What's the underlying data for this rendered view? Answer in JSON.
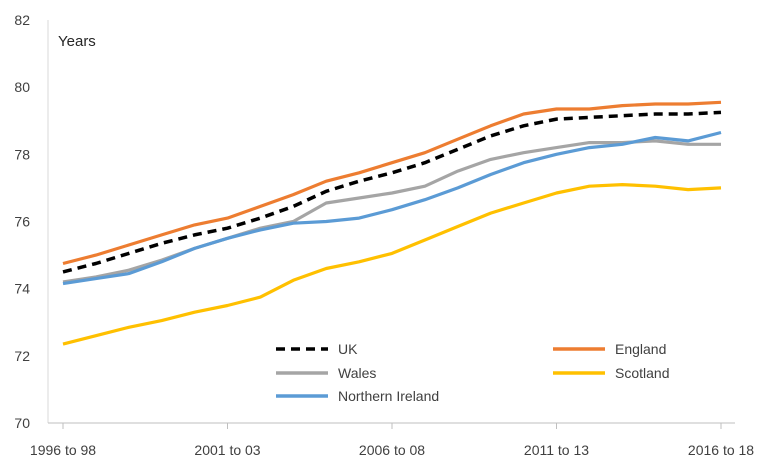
{
  "chart_data": {
    "type": "line",
    "title": "",
    "xlabel": "",
    "ylabel": "Years",
    "ylim": [
      70,
      82
    ],
    "yticks": [
      70,
      72,
      74,
      76,
      78,
      80,
      82
    ],
    "grid": false,
    "legend_position": "bottom-center",
    "x_tick_labels": [
      "1996 to 98",
      "2001 to 03",
      "2006 to 08",
      "2011 to 13",
      "2016 to 18"
    ],
    "x_tick_indices": [
      0,
      5,
      10,
      15,
      20
    ],
    "categories": [
      "1996 to 98",
      "1997 to 99",
      "1998 to 00",
      "1999 to 01",
      "2000 to 02",
      "2001 to 03",
      "2002 to 04",
      "2003 to 05",
      "2004 to 06",
      "2005 to 07",
      "2006 to 08",
      "2007 to 09",
      "2008 to 10",
      "2009 to 11",
      "2010 to 12",
      "2011 to 13",
      "2012 to 14",
      "2013 to 15",
      "2014 to 16",
      "2015 to 17",
      "2016 to 18"
    ],
    "series": [
      {
        "name": "UK",
        "color": "#000000",
        "dash": true,
        "values": [
          74.5,
          74.75,
          75.05,
          75.35,
          75.6,
          75.8,
          76.1,
          76.45,
          76.9,
          77.2,
          77.45,
          77.75,
          78.15,
          78.55,
          78.85,
          79.05,
          79.1,
          79.15,
          79.2,
          79.2,
          79.25
        ]
      },
      {
        "name": "England",
        "color": "#ED7D31",
        "dash": false,
        "values": [
          74.75,
          75.0,
          75.3,
          75.6,
          75.9,
          76.1,
          76.45,
          76.8,
          77.2,
          77.45,
          77.75,
          78.05,
          78.45,
          78.85,
          79.2,
          79.35,
          79.35,
          79.45,
          79.5,
          79.5,
          79.55
        ]
      },
      {
        "name": "Wales",
        "color": "#A5A5A5",
        "dash": false,
        "values": [
          74.2,
          74.35,
          74.55,
          74.85,
          75.2,
          75.5,
          75.8,
          76.0,
          76.55,
          76.7,
          76.85,
          77.05,
          77.5,
          77.85,
          78.05,
          78.2,
          78.35,
          78.35,
          78.4,
          78.3,
          78.3
        ]
      },
      {
        "name": "Scotland",
        "color": "#FFC000",
        "dash": false,
        "values": [
          72.35,
          72.6,
          72.85,
          73.05,
          73.3,
          73.5,
          73.75,
          74.25,
          74.6,
          74.8,
          75.05,
          75.45,
          75.85,
          76.25,
          76.55,
          76.85,
          77.05,
          77.1,
          77.05,
          76.95,
          77.0
        ]
      },
      {
        "name": "Northern Ireland",
        "color": "#5B9BD5",
        "dash": false,
        "values": [
          74.15,
          74.3,
          74.45,
          74.8,
          75.2,
          75.5,
          75.75,
          75.95,
          76.0,
          76.1,
          76.35,
          76.65,
          77.0,
          77.4,
          77.75,
          78.0,
          78.2,
          78.3,
          78.5,
          78.4,
          78.65
        ]
      }
    ]
  }
}
